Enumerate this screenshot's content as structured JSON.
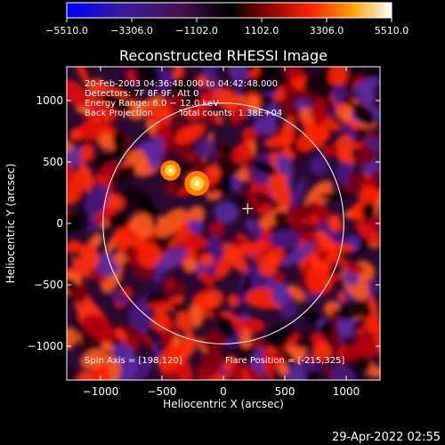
{
  "chart_data": {
    "type": "heatmap",
    "title": "Reconstructed RHESSI Image",
    "xlabel": "Heliocentric X (arcsec)",
    "ylabel": "Heliocentric Y (arcsec)",
    "xlim": [
      -1275,
      1275
    ],
    "ylim": [
      -1275,
      1275
    ],
    "xticks": [
      -1000,
      -500,
      0,
      500,
      1000
    ],
    "yticks": [
      1000,
      500,
      0,
      -500,
      -1000
    ],
    "xtick_labels": [
      "−1000",
      "−500",
      "0",
      "500",
      "1000"
    ],
    "ytick_labels": [
      "1000",
      "500",
      "0",
      "−500",
      "−1000"
    ],
    "colorbar": {
      "min": -5510.0,
      "max": 5510.0,
      "ticks": [
        "−5510.0",
        "−3306.0",
        "−1102.0",
        "1102.0",
        "3306.0",
        "5510.0"
      ],
      "stops": [
        "#0000ff",
        "#5a1a8a",
        "#000000",
        "#8b0000",
        "#ff2a00",
        "#ffa500",
        "#ffff80",
        "#ffffff"
      ]
    },
    "annotations": [
      "20-Feb-2003 04:36:48.000 to 04:42:48.000",
      "Detectors: 7F 8F 9F, Att 0",
      "Energy Range: 6.0 − 12.0 keV",
      "Back Projection",
      "Total counts: 1.38E+04"
    ],
    "spin_axis": "Spin Axis = [198,120]",
    "flare_position": "Flare Position = [-215,325]",
    "sources": [
      {
        "x": -215,
        "y": 325,
        "value": 5510
      },
      {
        "x": -430,
        "y": 430,
        "value": 4300
      }
    ],
    "solar_limb_radius": 980
  },
  "footer": {
    "timestamp": "29-Apr-2022 02:55"
  }
}
